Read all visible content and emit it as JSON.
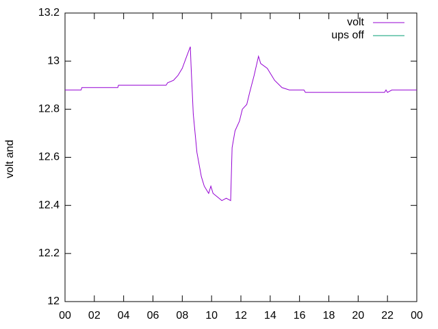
{
  "chart_data": {
    "type": "line",
    "y_label": "volt and",
    "legend": "top right",
    "xlim": [
      0,
      24
    ],
    "xticks": [
      {
        "value": 0,
        "label": "00"
      },
      {
        "value": 2,
        "label": "02"
      },
      {
        "value": 4,
        "label": "04"
      },
      {
        "value": 6,
        "label": "06"
      },
      {
        "value": 8,
        "label": "08"
      },
      10,
      12,
      14,
      16,
      18,
      20,
      22,
      {
        "value": 24,
        "label": "00"
      }
    ],
    "ylim": [
      12,
      13.2
    ],
    "yticks": [
      12,
      12.2,
      12.4,
      12.6,
      12.8,
      13,
      13.2
    ],
    "series": [
      {
        "name": "volt",
        "color": "#9400d3",
        "x": [
          0,
          1.1,
          1.15,
          3.6,
          3.65,
          6.9,
          7.0,
          7.4,
          7.7,
          8.0,
          8.3,
          8.55,
          8.6,
          8.75,
          9.0,
          9.3,
          9.5,
          9.8,
          9.95,
          10.1,
          10.3,
          10.5,
          10.7,
          11.0,
          11.3,
          11.4,
          11.6,
          11.9,
          12.1,
          12.4,
          12.6,
          12.9,
          13.2,
          13.35,
          13.8,
          14.3,
          14.8,
          15.3,
          16.3,
          16.4,
          21.8,
          21.9,
          22.0,
          22.3,
          24
        ],
        "values": [
          12.88,
          12.88,
          12.89,
          12.89,
          12.9,
          12.9,
          12.91,
          12.92,
          12.94,
          12.97,
          13.02,
          13.06,
          12.98,
          12.78,
          12.62,
          12.52,
          12.48,
          12.45,
          12.48,
          12.45,
          12.44,
          12.43,
          12.42,
          12.43,
          12.42,
          12.64,
          12.71,
          12.75,
          12.8,
          12.82,
          12.87,
          12.94,
          13.02,
          12.99,
          12.97,
          12.92,
          12.89,
          12.88,
          12.88,
          12.87,
          12.87,
          12.88,
          12.87,
          12.88,
          12.88
        ]
      },
      {
        "name": "ups off",
        "color": "#009e73",
        "x": [],
        "values": []
      }
    ]
  }
}
